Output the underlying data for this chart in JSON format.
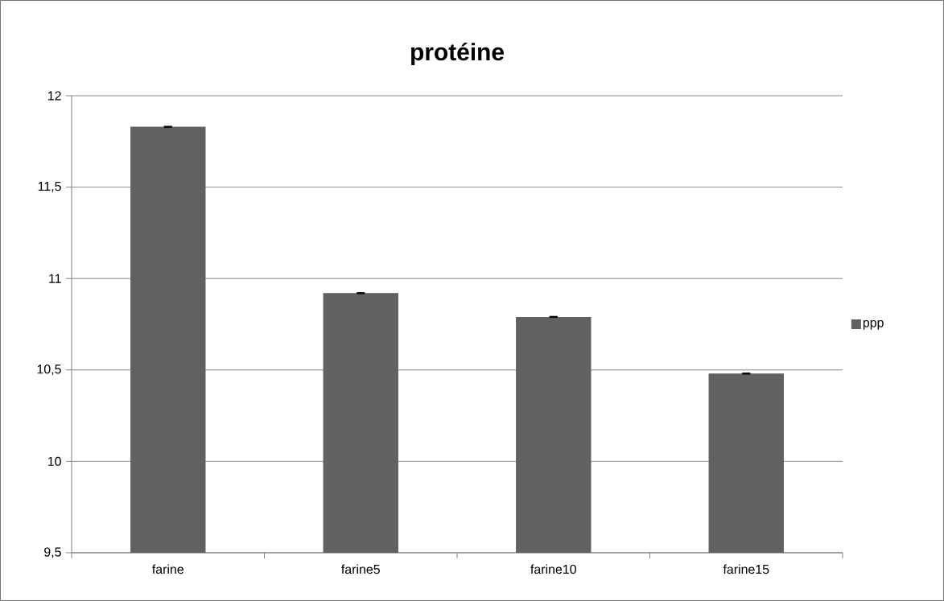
{
  "chart_data": {
    "type": "bar",
    "title": "protéine",
    "categories": [
      "farine",
      "farine5",
      "farine10",
      "farine15"
    ],
    "series": [
      {
        "name": "ppp",
        "color": "#616161",
        "values": [
          11.83,
          10.92,
          10.79,
          10.48
        ],
        "errors": [
          0.002,
          0.002,
          0.002,
          0.002
        ]
      }
    ],
    "ylim": [
      9.5,
      12
    ],
    "yticks": [
      {
        "value": 9.5,
        "label": "9,5"
      },
      10,
      {
        "value": 10.5,
        "label": "10,5"
      },
      11,
      {
        "value": 11.5,
        "label": "11,5"
      },
      12
    ],
    "grid": "y",
    "legend": "right"
  }
}
